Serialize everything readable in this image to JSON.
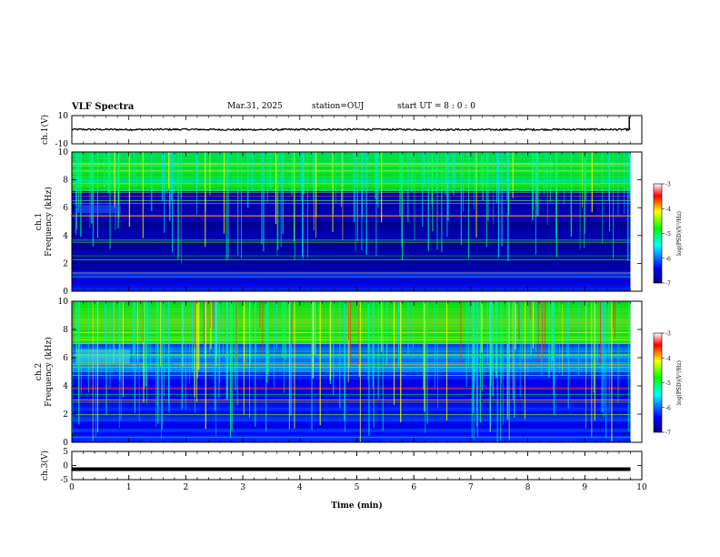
{
  "header": {
    "title": "VLF Spectra",
    "date": "Mar.31, 2025",
    "station": "station=OUJ",
    "start_ut": "start  UT =   8 : 0  : 0"
  },
  "chart_data": [
    {
      "type": "line",
      "name": "ch1-waveform",
      "ylabel": "ch.1(V)",
      "ylim": [
        -10,
        10
      ],
      "y_ticks": [
        "10",
        "-10"
      ],
      "x": [
        0,
        1,
        2,
        3,
        4,
        5,
        6,
        7,
        8,
        9,
        9.8
      ],
      "y": [
        0.2,
        0.1,
        0.2,
        0.0,
        0.1,
        0.2,
        0.1,
        0.0,
        0.1,
        0.2,
        0.1
      ],
      "spike_x": 9.78
    },
    {
      "type": "heatmap",
      "name": "ch1-spectrogram",
      "ylabel_line1": "ch.1",
      "ylabel_line2": "Frequency (kHz)",
      "ylim": [
        0,
        10
      ],
      "y_ticks": [
        "0",
        "2",
        "4",
        "6",
        "8",
        "10"
      ],
      "xlim": [
        0,
        10
      ],
      "data_end_min": 9.8,
      "colorbar": {
        "label": "log(PSD)(V²/Hz)",
        "range": [
          -7,
          -3
        ],
        "ticks": [
          "-3",
          "-4",
          "-5",
          "-6",
          "-7"
        ]
      }
    },
    {
      "type": "heatmap",
      "name": "ch2-spectrogram",
      "ylabel_line1": "ch.2",
      "ylabel_line2": "Frequency (kHz)",
      "ylim": [
        0,
        10
      ],
      "y_ticks": [
        "0",
        "2",
        "4",
        "6",
        "8",
        "10"
      ],
      "xlim": [
        0,
        10
      ],
      "data_end_min": 9.8,
      "colorbar": {
        "label": "log(PSD)(V²/Hz)",
        "range": [
          -7,
          -3
        ],
        "ticks": [
          "-3",
          "-4",
          "-5",
          "-6",
          "-7"
        ]
      }
    },
    {
      "type": "line",
      "name": "ch3-waveform",
      "ylabel": "ch.3(V)",
      "ylim": [
        -5,
        5
      ],
      "y_ticks": [
        "5",
        "0",
        "-5"
      ],
      "x": [
        0,
        9.8
      ],
      "y": [
        -1.3,
        -1.3
      ]
    }
  ],
  "x_axis": {
    "label": "Time (min)",
    "range": [
      0,
      10
    ],
    "ticks": [
      "0",
      "1",
      "2",
      "3",
      "4",
      "5",
      "6",
      "7",
      "8",
      "9",
      "10"
    ]
  }
}
